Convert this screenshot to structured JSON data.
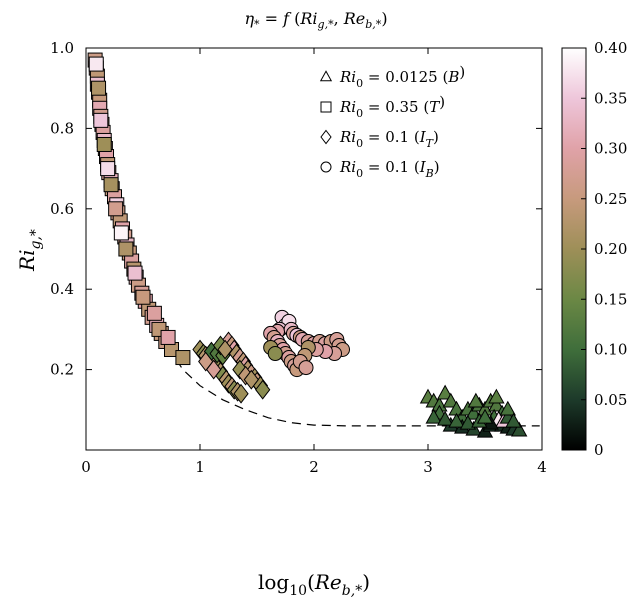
{
  "chart_data": {
    "type": "scatter",
    "title": {
      "lhs": "η",
      "lhs_sub": "*",
      "eq": " = ",
      "f": "f",
      "open": " (",
      "a": "Ri",
      "a_sub": "g,*",
      "comma": ", ",
      "b": "Re",
      "b_sub": "b,*",
      "close": ")"
    },
    "xlabel": {
      "prefix": "log",
      "prefix_sub": "10",
      "open": "(",
      "var": "Re",
      "var_sub": "b,*",
      "close": ")"
    },
    "ylabel": {
      "var": "Ri",
      "var_sub": "g,*"
    },
    "xlim": [
      0,
      4
    ],
    "ylim": [
      0,
      1.0
    ],
    "x_ticks": [
      {
        "value": 0,
        "label": "0"
      },
      {
        "value": 1,
        "label": "1"
      },
      {
        "value": 2,
        "label": "2"
      },
      {
        "value": 3,
        "label": "3"
      },
      {
        "value": 4,
        "label": "4"
      }
    ],
    "y_ticks": [
      {
        "value": 0.2,
        "label": "0.2"
      },
      {
        "value": 0.4,
        "label": "0.4"
      },
      {
        "value": 0.6,
        "label": "0.6"
      },
      {
        "value": 0.8,
        "label": "0.8"
      },
      {
        "value": 1.0,
        "label": "1.0"
      }
    ],
    "colorbar": {
      "range": [
        0,
        0.4
      ],
      "ticks": [
        {
          "value": 0,
          "label": "0"
        },
        {
          "value": 0.05,
          "label": "0.05"
        },
        {
          "value": 0.1,
          "label": "0.10"
        },
        {
          "value": 0.15,
          "label": "0.15"
        },
        {
          "value": 0.2,
          "label": "0.20"
        },
        {
          "value": 0.25,
          "label": "0.25"
        },
        {
          "value": 0.3,
          "label": "0.30"
        },
        {
          "value": 0.35,
          "label": "0.35"
        },
        {
          "value": 0.4,
          "label": "0.40"
        }
      ],
      "stops": [
        "#000000",
        "#1d3a2a",
        "#3f6e3b",
        "#6b8845",
        "#9e8f58",
        "#c79a7d",
        "#e0a2a8",
        "#eec6da",
        "#ffffff"
      ]
    },
    "legend_position": "top-right",
    "legend": [
      {
        "marker": "triangle",
        "var": "Ri",
        "sub": "0",
        "value": " = 0.0125 (",
        "case": "B",
        "case_sub": "",
        "close": ")"
      },
      {
        "marker": "square",
        "var": "Ri",
        "sub": "0",
        "value": " = 0.35 (",
        "case": "T",
        "case_sub": "",
        "close": ")"
      },
      {
        "marker": "diamond",
        "var": "Ri",
        "sub": "0",
        "value": " = 0.1 (",
        "case": "I",
        "case_sub": "T",
        "close": ")"
      },
      {
        "marker": "circle",
        "var": "Ri",
        "sub": "0",
        "value": " = 0.1 (",
        "case": "I",
        "case_sub": "B",
        "close": ")"
      }
    ],
    "reference_curve": {
      "style": "dashed",
      "points": [
        [
          0.72,
          0.255
        ],
        [
          0.85,
          0.2
        ],
        [
          1.0,
          0.16
        ],
        [
          1.2,
          0.125
        ],
        [
          1.4,
          0.1
        ],
        [
          1.6,
          0.08
        ],
        [
          1.8,
          0.068
        ],
        [
          2.0,
          0.062
        ],
        [
          2.3,
          0.06
        ],
        [
          2.7,
          0.06
        ],
        [
          3.0,
          0.06
        ],
        [
          3.5,
          0.06
        ],
        [
          3.98,
          0.06
        ]
      ]
    },
    "series": [
      {
        "marker": "square",
        "points": [
          [
            0.08,
            0.97,
            0.26
          ],
          [
            0.09,
            0.95,
            0.3
          ],
          [
            0.1,
            0.93,
            0.24
          ],
          [
            0.1,
            0.91,
            0.34
          ],
          [
            0.11,
            0.89,
            0.28
          ],
          [
            0.12,
            0.87,
            0.25
          ],
          [
            0.12,
            0.85,
            0.31
          ],
          [
            0.13,
            0.83,
            0.27
          ],
          [
            0.14,
            0.81,
            0.24
          ],
          [
            0.15,
            0.79,
            0.29
          ],
          [
            0.16,
            0.77,
            0.33
          ],
          [
            0.17,
            0.75,
            0.26
          ],
          [
            0.18,
            0.73,
            0.3
          ],
          [
            0.19,
            0.71,
            0.24
          ],
          [
            0.2,
            0.69,
            0.28
          ],
          [
            0.22,
            0.67,
            0.32
          ],
          [
            0.23,
            0.65,
            0.25
          ],
          [
            0.25,
            0.63,
            0.29
          ],
          [
            0.27,
            0.61,
            0.36
          ],
          [
            0.28,
            0.59,
            0.26
          ],
          [
            0.3,
            0.57,
            0.24
          ],
          [
            0.32,
            0.55,
            0.3
          ],
          [
            0.34,
            0.53,
            0.27
          ],
          [
            0.36,
            0.51,
            0.33
          ],
          [
            0.38,
            0.49,
            0.25
          ],
          [
            0.4,
            0.47,
            0.29
          ],
          [
            0.42,
            0.45,
            0.23
          ],
          [
            0.44,
            0.43,
            0.31
          ],
          [
            0.46,
            0.41,
            0.26
          ],
          [
            0.49,
            0.39,
            0.28
          ],
          [
            0.52,
            0.37,
            0.3
          ],
          [
            0.55,
            0.35,
            0.24
          ],
          [
            0.58,
            0.33,
            0.27
          ],
          [
            0.62,
            0.31,
            0.32
          ],
          [
            0.66,
            0.29,
            0.25
          ],
          [
            0.7,
            0.27,
            0.26
          ],
          [
            0.75,
            0.25,
            0.23
          ],
          [
            0.85,
            0.23,
            0.22
          ],
          [
            0.09,
            0.96,
            0.38
          ],
          [
            0.11,
            0.9,
            0.22
          ],
          [
            0.13,
            0.82,
            0.35
          ],
          [
            0.16,
            0.76,
            0.2
          ],
          [
            0.19,
            0.7,
            0.37
          ],
          [
            0.22,
            0.66,
            0.21
          ],
          [
            0.26,
            0.6,
            0.27
          ],
          [
            0.31,
            0.54,
            0.39
          ],
          [
            0.35,
            0.5,
            0.22
          ],
          [
            0.43,
            0.44,
            0.34
          ],
          [
            0.5,
            0.38,
            0.25
          ],
          [
            0.6,
            0.34,
            0.29
          ],
          [
            0.64,
            0.3,
            0.24
          ],
          [
            0.72,
            0.28,
            0.3
          ]
        ]
      },
      {
        "marker": "diamond",
        "points": [
          [
            1.0,
            0.25,
            0.2
          ],
          [
            1.03,
            0.24,
            0.18
          ],
          [
            1.05,
            0.235,
            0.23
          ],
          [
            1.08,
            0.23,
            0.21
          ],
          [
            1.1,
            0.225,
            0.16
          ],
          [
            1.12,
            0.215,
            0.24
          ],
          [
            1.15,
            0.205,
            0.19
          ],
          [
            1.18,
            0.195,
            0.22
          ],
          [
            1.2,
            0.185,
            0.17
          ],
          [
            1.23,
            0.175,
            0.23
          ],
          [
            1.25,
            0.165,
            0.2
          ],
          [
            1.28,
            0.158,
            0.24
          ],
          [
            1.3,
            0.15,
            0.18
          ],
          [
            1.33,
            0.145,
            0.22
          ],
          [
            1.36,
            0.14,
            0.2
          ],
          [
            1.25,
            0.27,
            0.28
          ],
          [
            1.28,
            0.26,
            0.25
          ],
          [
            1.3,
            0.25,
            0.3
          ],
          [
            1.32,
            0.24,
            0.22
          ],
          [
            1.35,
            0.23,
            0.27
          ],
          [
            1.38,
            0.22,
            0.24
          ],
          [
            1.4,
            0.21,
            0.29
          ],
          [
            1.42,
            0.2,
            0.23
          ],
          [
            1.45,
            0.19,
            0.26
          ],
          [
            1.48,
            0.18,
            0.21
          ],
          [
            1.5,
            0.17,
            0.25
          ],
          [
            1.53,
            0.16,
            0.2
          ],
          [
            1.55,
            0.15,
            0.18
          ],
          [
            1.1,
            0.245,
            0.1
          ],
          [
            1.15,
            0.24,
            0.12
          ],
          [
            1.2,
            0.235,
            0.14
          ],
          [
            1.18,
            0.26,
            0.16
          ],
          [
            1.22,
            0.25,
            0.22
          ],
          [
            1.05,
            0.22,
            0.26
          ],
          [
            1.12,
            0.2,
            0.28
          ],
          [
            1.35,
            0.2,
            0.19
          ],
          [
            1.4,
            0.185,
            0.24
          ],
          [
            1.45,
            0.175,
            0.22
          ]
        ]
      },
      {
        "marker": "circle",
        "points": [
          [
            1.72,
            0.33,
            0.36
          ],
          [
            1.75,
            0.31,
            0.39
          ],
          [
            1.78,
            0.32,
            0.37
          ],
          [
            1.7,
            0.3,
            0.34
          ],
          [
            1.68,
            0.295,
            0.3
          ],
          [
            1.8,
            0.3,
            0.33
          ],
          [
            1.82,
            0.29,
            0.28
          ],
          [
            1.85,
            0.285,
            0.35
          ],
          [
            1.88,
            0.28,
            0.26
          ],
          [
            1.9,
            0.275,
            0.31
          ],
          [
            1.62,
            0.29,
            0.3
          ],
          [
            1.65,
            0.28,
            0.27
          ],
          [
            1.68,
            0.27,
            0.32
          ],
          [
            1.7,
            0.26,
            0.28
          ],
          [
            1.73,
            0.25,
            0.3
          ],
          [
            1.75,
            0.24,
            0.27
          ],
          [
            1.78,
            0.23,
            0.29
          ],
          [
            1.8,
            0.22,
            0.26
          ],
          [
            1.83,
            0.21,
            0.28
          ],
          [
            1.85,
            0.2,
            0.25
          ],
          [
            1.95,
            0.27,
            0.28
          ],
          [
            2.0,
            0.265,
            0.3
          ],
          [
            2.05,
            0.27,
            0.27
          ],
          [
            2.1,
            0.265,
            0.29
          ],
          [
            2.15,
            0.27,
            0.26
          ],
          [
            2.2,
            0.275,
            0.28
          ],
          [
            2.22,
            0.26,
            0.27
          ],
          [
            2.25,
            0.25,
            0.26
          ],
          [
            2.18,
            0.24,
            0.28
          ],
          [
            2.1,
            0.245,
            0.3
          ],
          [
            2.02,
            0.25,
            0.29
          ],
          [
            1.95,
            0.255,
            0.22
          ],
          [
            1.92,
            0.235,
            0.24
          ],
          [
            1.62,
            0.255,
            0.2
          ],
          [
            1.66,
            0.24,
            0.18
          ],
          [
            1.88,
            0.22,
            0.27
          ],
          [
            1.93,
            0.205,
            0.28
          ]
        ]
      },
      {
        "marker": "triangle",
        "points": [
          [
            3.0,
            0.13,
            0.13
          ],
          [
            3.05,
            0.12,
            0.12
          ],
          [
            3.1,
            0.11,
            0.11
          ],
          [
            3.15,
            0.14,
            0.13
          ],
          [
            3.2,
            0.12,
            0.12
          ],
          [
            3.1,
            0.09,
            0.1
          ],
          [
            3.25,
            0.1,
            0.11
          ],
          [
            3.3,
            0.08,
            0.1
          ],
          [
            3.35,
            0.1,
            0.11
          ],
          [
            3.4,
            0.09,
            0.1
          ],
          [
            3.45,
            0.11,
            0.11
          ],
          [
            3.5,
            0.1,
            0.12
          ],
          [
            3.55,
            0.12,
            0.12
          ],
          [
            3.6,
            0.11,
            0.12
          ],
          [
            3.65,
            0.09,
            0.1
          ],
          [
            3.2,
            0.06,
            0.05
          ],
          [
            3.3,
            0.055,
            0.04
          ],
          [
            3.4,
            0.05,
            0.06
          ],
          [
            3.5,
            0.045,
            0.03
          ],
          [
            3.55,
            0.06,
            0.05
          ],
          [
            3.6,
            0.07,
            0.06
          ],
          [
            3.65,
            0.06,
            0.04
          ],
          [
            3.7,
            0.055,
            0.03
          ],
          [
            3.75,
            0.05,
            0.05
          ],
          [
            3.8,
            0.048,
            0.07
          ],
          [
            3.58,
            0.08,
            0.1
          ],
          [
            3.62,
            0.075,
            0.38
          ],
          [
            3.66,
            0.07,
            0.35
          ],
          [
            3.55,
            0.065,
            0.02
          ],
          [
            3.7,
            0.08,
            0.08
          ],
          [
            3.05,
            0.08,
            0.09
          ],
          [
            3.15,
            0.075,
            0.08
          ],
          [
            3.25,
            0.07,
            0.09
          ],
          [
            3.35,
            0.065,
            0.08
          ],
          [
            3.45,
            0.07,
            0.09
          ],
          [
            3.5,
            0.08,
            0.1
          ],
          [
            3.42,
            0.12,
            0.12
          ],
          [
            3.6,
            0.13,
            0.13
          ],
          [
            3.7,
            0.1,
            0.11
          ],
          [
            3.75,
            0.07,
            0.08
          ]
        ]
      }
    ]
  }
}
